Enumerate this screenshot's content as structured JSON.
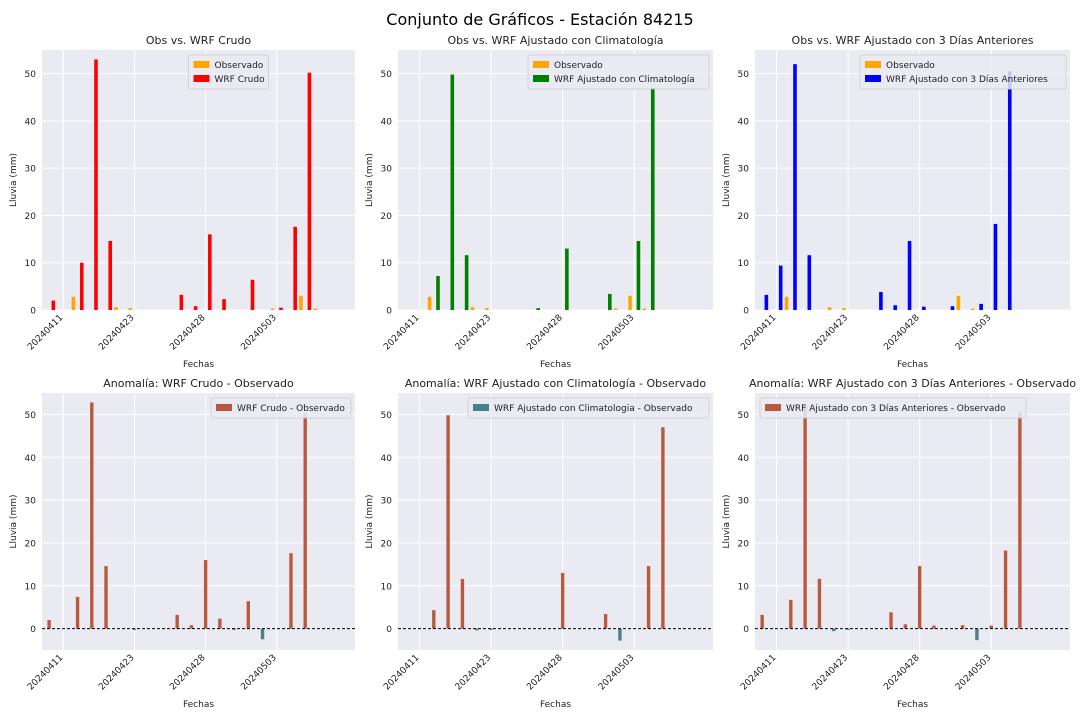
{
  "suptitle": "Conjunto de Gráficos - Estación 84215",
  "colors": {
    "observado": "#FFA500",
    "raw": "#FF0000",
    "clim": "#008000",
    "prev3": "#0000FF",
    "anom_pos": "#B85A3F",
    "anom_neg": "#4A7F8C",
    "panel_bg": "#EAEAF2",
    "grid": "#FFFFFF"
  },
  "chart_data": [
    {
      "type": "bar",
      "title": "Obs vs. WRF Crudo",
      "xlabel": "Fechas",
      "ylabel": "Lluvia (mm)",
      "ylim": [
        0,
        55
      ],
      "yticks": [
        0,
        10,
        20,
        30,
        40,
        50
      ],
      "xticks": [
        "20240411",
        "20240423",
        "20240428",
        "20240503"
      ],
      "legend": "top-center",
      "series": [
        {
          "name": "Observado",
          "color": "#FFA500",
          "values": [
            0,
            0,
            2.8,
            0,
            0,
            0.6,
            0.4,
            0,
            0,
            0,
            0,
            0,
            0,
            0,
            0,
            0,
            0.3,
            0,
            3,
            0.3,
            0,
            0
          ]
        },
        {
          "name": "WRF Crudo",
          "color": "#FF0000",
          "values": [
            2,
            0,
            10,
            53,
            14.6,
            0,
            0,
            0,
            0,
            3.2,
            0.8,
            16,
            2.3,
            0,
            6.4,
            0,
            0.5,
            17.6,
            50.2,
            0,
            0,
            0
          ]
        }
      ]
    },
    {
      "type": "bar",
      "title": "Obs vs. WRF Ajustado con Climatología",
      "xlabel": "Fechas",
      "ylabel": "Lluvia (mm)",
      "ylim": [
        0,
        55
      ],
      "yticks": [
        0,
        10,
        20,
        30,
        40,
        50
      ],
      "xticks": [
        "20240411",
        "20240423",
        "20240428",
        "20240503"
      ],
      "legend": "top-right",
      "series": [
        {
          "name": "Observado",
          "color": "#FFA500",
          "values": [
            0,
            0,
            2.8,
            0,
            0,
            0.6,
            0.4,
            0,
            0,
            0,
            0,
            0,
            0,
            0,
            0,
            0.3,
            3,
            0.3,
            0,
            0,
            0,
            0
          ]
        },
        {
          "name": "WRF Ajustado con Climatología",
          "color": "#008000",
          "values": [
            0,
            0,
            7.2,
            49.8,
            11.6,
            0,
            0,
            0,
            0,
            0.4,
            0,
            13,
            0,
            0,
            3.4,
            0,
            14.6,
            47,
            0,
            0,
            0,
            0
          ]
        }
      ]
    },
    {
      "type": "bar",
      "title": "Obs vs. WRF Ajustado con 3 Días Anteriores",
      "xlabel": "Fechas",
      "ylabel": "Lluvia (mm)",
      "ylim": [
        0,
        55
      ],
      "yticks": [
        0,
        10,
        20,
        30,
        40,
        50
      ],
      "xticks": [
        "20240411",
        "20240423",
        "20240428",
        "20240503"
      ],
      "legend": "top-right",
      "series": [
        {
          "name": "Observado",
          "color": "#FFA500",
          "values": [
            0,
            0,
            2.8,
            0,
            0,
            0.6,
            0.4,
            0,
            0,
            0,
            0,
            0,
            0,
            0,
            3,
            0.3,
            0,
            0,
            0,
            0,
            0,
            0
          ]
        },
        {
          "name": "WRF Ajustado con 3 Días Anteriores",
          "color": "#0000FF",
          "values": [
            3.2,
            9.4,
            52,
            11.6,
            0,
            0,
            0,
            0,
            3.8,
            1,
            14.6,
            0.7,
            0,
            0.8,
            0,
            1.3,
            18.2,
            50.5,
            0,
            0,
            0,
            0
          ]
        }
      ]
    },
    {
      "type": "bar",
      "title": "Anomalía: WRF Crudo - Observado",
      "xlabel": "Fechas",
      "ylabel": "Lluvia (mm)",
      "ylim": [
        -5,
        55
      ],
      "yticks": [
        0,
        10,
        20,
        30,
        40,
        50
      ],
      "xticks": [
        "20240411",
        "20240423",
        "20240428",
        "20240503"
      ],
      "legend": "top-right",
      "series": [
        {
          "name": "WRF Crudo - Observado",
          "values": [
            2,
            0,
            7.4,
            52.8,
            14.6,
            0,
            -0.3,
            0,
            0,
            3.2,
            0.8,
            16,
            2.3,
            -0.3,
            6.4,
            -2.5,
            0,
            17.6,
            50.2,
            0,
            0,
            0
          ]
        }
      ]
    },
    {
      "type": "bar",
      "title": "Anomalía: WRF Ajustado con Climatología - Observado",
      "xlabel": "Fechas",
      "ylabel": "Lluvia (mm)",
      "ylim": [
        -5,
        55
      ],
      "yticks": [
        0,
        10,
        20,
        30,
        40,
        50
      ],
      "xticks": [
        "20240411",
        "20240423",
        "20240428",
        "20240503"
      ],
      "legend": "top-right",
      "series": [
        {
          "name": "WRF Ajustado con Climatologia - Observado",
          "values": [
            0,
            0,
            4.3,
            49.8,
            11.6,
            -0.4,
            -0.3,
            0,
            0,
            0,
            0,
            13,
            0,
            0,
            3.4,
            -2.8,
            0,
            14.6,
            47,
            0,
            0,
            0
          ]
        }
      ]
    },
    {
      "type": "bar",
      "title": "Anomalía: WRF Ajustado con 3 Días Anteriores - Observado",
      "xlabel": "Fechas",
      "ylabel": "Lluvia (mm)",
      "ylim": [
        -5,
        55
      ],
      "yticks": [
        0,
        10,
        20,
        30,
        40,
        50
      ],
      "xticks": [
        "20240411",
        "20240423",
        "20240428",
        "20240503"
      ],
      "legend": "top-left",
      "series": [
        {
          "name": "WRF Ajustado con 3 Días Anteriores - Observado",
          "values": [
            3.2,
            0,
            6.7,
            52,
            11.6,
            -0.6,
            -0.3,
            0,
            0,
            3.8,
            1,
            14.6,
            0.7,
            0,
            0.8,
            -2.7,
            0.7,
            18.2,
            50.5,
            0,
            0,
            0
          ]
        }
      ]
    }
  ]
}
